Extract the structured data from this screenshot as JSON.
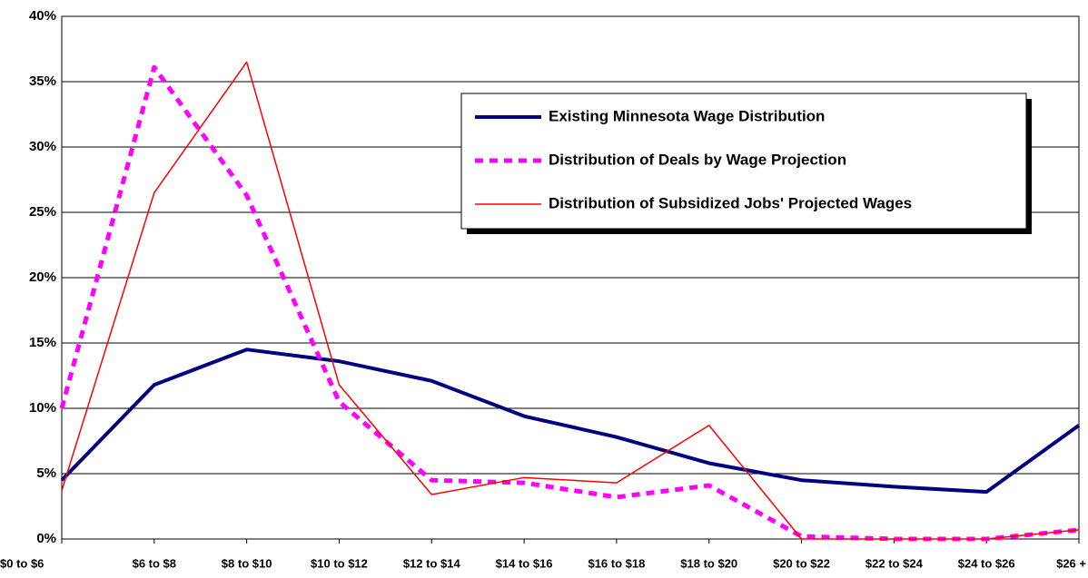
{
  "chart_data": {
    "type": "line",
    "categories": [
      "$0 to $6",
      "$6 to $8",
      "$8 to $10",
      "$10 to $12",
      "$12 to $14",
      "$14 to $16",
      "$16 to $18",
      "$18 to $20",
      "$20 to $22",
      "$22 to $24",
      "$24 to $26",
      "$26 +"
    ],
    "series": [
      {
        "name": "Existing Minnesota Wage Distribution",
        "color": "#000080",
        "style": "solid",
        "values": [
          4.5,
          11.8,
          14.5,
          13.6,
          12.1,
          9.4,
          7.8,
          5.8,
          4.5,
          4.0,
          3.6,
          8.7
        ]
      },
      {
        "name": "Distribution of Deals by Wage Projection",
        "color": "#ff00ff",
        "style": "dashed",
        "values": [
          10.0,
          36.1,
          26.3,
          10.5,
          4.5,
          4.3,
          3.2,
          4.1,
          0.2,
          0,
          0,
          0.7
        ]
      },
      {
        "name": "Distribution of Subsidized Jobs' Projected Wages",
        "color": "#ff0000",
        "style": "thin",
        "values": [
          3.7,
          26.5,
          36.5,
          11.8,
          3.4,
          4.7,
          4.3,
          8.7,
          0,
          0,
          0,
          0.7
        ]
      }
    ],
    "ylim": [
      0,
      40
    ],
    "yticks": [
      {
        "value": 0,
        "label": "0%"
      },
      {
        "value": 5,
        "label": "5%"
      },
      {
        "value": 10,
        "label": "10%"
      },
      {
        "value": 15,
        "label": "15%"
      },
      {
        "value": 20,
        "label": "20%"
      },
      {
        "value": 25,
        "label": "25%"
      },
      {
        "value": 30,
        "label": "30%"
      },
      {
        "value": 35,
        "label": "35%"
      },
      {
        "value": 40,
        "label": "40%"
      }
    ],
    "grid": true
  }
}
